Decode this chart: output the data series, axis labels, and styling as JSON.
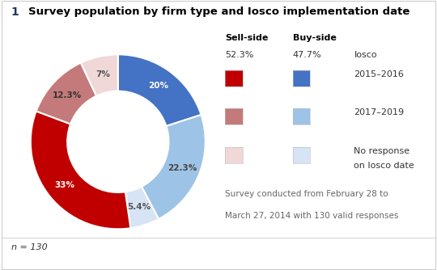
{
  "title_number": "1",
  "title_text": "Survey population by firm type and Iosco implementation date",
  "segments": [
    {
      "label": "Buy-side 2015-2016",
      "value": 20.0,
      "color": "#4472C4"
    },
    {
      "label": "Buy-side 2017-2019",
      "value": 22.3,
      "color": "#9DC3E6"
    },
    {
      "label": "Buy-side No response",
      "value": 5.4,
      "color": "#D6E4F5"
    },
    {
      "label": "Sell-side 2015-2016",
      "value": 33.0,
      "color": "#C00000"
    },
    {
      "label": "Sell-side 2017-2019",
      "value": 12.3,
      "color": "#C47A7A"
    },
    {
      "label": "Sell-side No response",
      "value": 7.0,
      "color": "#F0D8D8"
    }
  ],
  "pct_labels": [
    "20%",
    "22.3%",
    "5.4%",
    "33%",
    "12.3%",
    "7%"
  ],
  "pct_label_colors": [
    "white",
    "#444444",
    "#555555",
    "white",
    "#333333",
    "#555555"
  ],
  "sell_side_pct": "52.3%",
  "buy_side_pct": "47.7%",
  "n_label": "n = 130",
  "footnote_line1": "Survey conducted from February 28 to",
  "footnote_line2": "March 27, 2014 with 130 valid responses",
  "legend_colors_sell": [
    "#C00000",
    "#C47A7A",
    "#F0D8D8"
  ],
  "legend_colors_buy": [
    "#4472C4",
    "#9DC3E6",
    "#D6E4F5"
  ],
  "legend_labels": [
    "2015–2016",
    "2017–2019",
    "No response\non Iosco date"
  ],
  "background_color": "#FFFFFF",
  "title_number_color": "#1F3864",
  "title_text_color": "#000000",
  "header_color": "#000000",
  "iosco_label": "Iosco",
  "sell_side_label": "Sell-side",
  "buy_side_label": "Buy-side"
}
